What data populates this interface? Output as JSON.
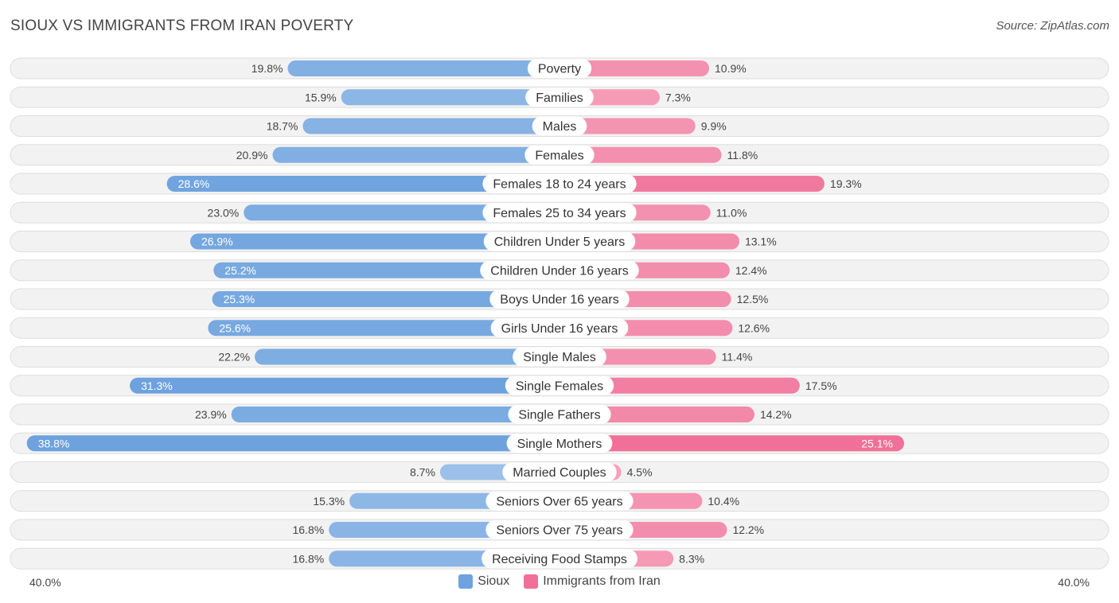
{
  "title": "SIOUX VS IMMIGRANTS FROM IRAN POVERTY",
  "source": "Source: ZipAtlas.com",
  "colors": {
    "left_series": "#6da2de",
    "right_series": "#f07099",
    "track": "#efefef"
  },
  "axis": {
    "left_label": "40.0%",
    "right_label": "40.0%"
  },
  "legend": {
    "left": "Sioux",
    "right": "Immigrants from Iran"
  },
  "chart_data": {
    "type": "bar",
    "orientation": "horizontal-diverging",
    "title": "SIOUX VS IMMIGRANTS FROM IRAN POVERTY",
    "xlim": [
      -40,
      40
    ],
    "categories": [
      "Poverty",
      "Families",
      "Males",
      "Females",
      "Females 18 to 24 years",
      "Females 25 to 34 years",
      "Children Under 5 years",
      "Children Under 16 years",
      "Boys Under 16 years",
      "Girls Under 16 years",
      "Single Males",
      "Single Females",
      "Single Fathers",
      "Single Mothers",
      "Married Couples",
      "Seniors Over 65 years",
      "Seniors Over 75 years",
      "Receiving Food Stamps"
    ],
    "series": [
      {
        "name": "Sioux",
        "values": [
          19.8,
          15.9,
          18.7,
          20.9,
          28.6,
          23.0,
          26.9,
          25.2,
          25.3,
          25.6,
          22.2,
          31.3,
          23.9,
          38.8,
          8.7,
          15.3,
          16.8,
          16.8
        ],
        "labels": [
          "19.8%",
          "15.9%",
          "18.7%",
          "20.9%",
          "28.6%",
          "23.0%",
          "26.9%",
          "25.2%",
          "25.3%",
          "25.6%",
          "22.2%",
          "31.3%",
          "23.9%",
          "38.8%",
          "8.7%",
          "15.3%",
          "16.8%",
          "16.8%"
        ]
      },
      {
        "name": "Immigrants from Iran",
        "values": [
          10.9,
          7.3,
          9.9,
          11.8,
          19.3,
          11.0,
          13.1,
          12.4,
          12.5,
          12.6,
          11.4,
          17.5,
          14.2,
          25.1,
          4.5,
          10.4,
          12.2,
          8.3
        ],
        "labels": [
          "10.9%",
          "7.3%",
          "9.9%",
          "11.8%",
          "19.3%",
          "11.0%",
          "13.1%",
          "12.4%",
          "12.5%",
          "12.6%",
          "11.4%",
          "17.5%",
          "14.2%",
          "25.1%",
          "4.5%",
          "10.4%",
          "12.2%",
          "8.3%"
        ]
      }
    ]
  }
}
